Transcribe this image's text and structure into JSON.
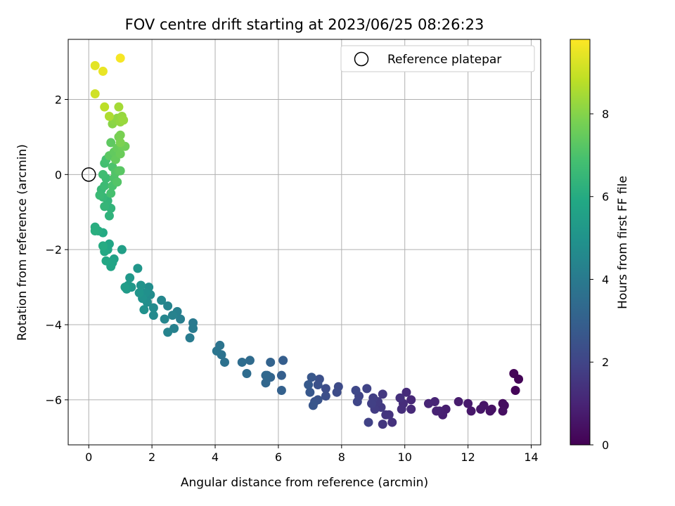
{
  "chart_data": {
    "type": "scatter",
    "title": "FOV centre drift starting at 2023/06/25 08:26:23",
    "xlabel": "Angular distance from reference (arcmin)",
    "ylabel": "Rotation from reference (arcmin)",
    "xlim": [
      -0.65,
      14.3
    ],
    "ylim": [
      -7.2,
      3.6
    ],
    "xticks": [
      0,
      2,
      4,
      6,
      8,
      10,
      12,
      14
    ],
    "yticks": [
      -6,
      -4,
      -2,
      0,
      2
    ],
    "grid": true,
    "legend": {
      "entries": [
        "Reference platepar"
      ],
      "placement": "top-right"
    },
    "reference_point": {
      "x": 0,
      "y": 0
    },
    "colorbar": {
      "label": "Hours from first FF file",
      "range": [
        0,
        9.8
      ],
      "ticks": [
        0,
        2,
        4,
        6,
        8
      ],
      "colormap": "viridis"
    },
    "points": [
      {
        "x": 13.45,
        "y": -5.3,
        "h": 0.15
      },
      {
        "x": 13.6,
        "y": -5.45,
        "h": 0.1
      },
      {
        "x": 13.5,
        "y": -5.75,
        "h": 0.12
      },
      {
        "x": 13.1,
        "y": -6.1,
        "h": 0.3
      },
      {
        "x": 13.15,
        "y": -6.15,
        "h": 0.35
      },
      {
        "x": 13.1,
        "y": -6.3,
        "h": 0.4
      },
      {
        "x": 12.75,
        "y": -6.25,
        "h": 0.45
      },
      {
        "x": 12.7,
        "y": -6.3,
        "h": 0.5
      },
      {
        "x": 12.5,
        "y": -6.15,
        "h": 0.55
      },
      {
        "x": 12.4,
        "y": -6.25,
        "h": 0.6
      },
      {
        "x": 12.1,
        "y": -6.3,
        "h": 0.65
      },
      {
        "x": 12.0,
        "y": -6.1,
        "h": 0.7
      },
      {
        "x": 11.7,
        "y": -6.05,
        "h": 0.75
      },
      {
        "x": 11.3,
        "y": -6.25,
        "h": 0.8
      },
      {
        "x": 11.2,
        "y": -6.4,
        "h": 0.85
      },
      {
        "x": 11.1,
        "y": -6.3,
        "h": 0.9
      },
      {
        "x": 11.0,
        "y": -6.3,
        "h": 0.95
      },
      {
        "x": 10.95,
        "y": -6.05,
        "h": 1.0
      },
      {
        "x": 10.75,
        "y": -6.1,
        "h": 1.05
      },
      {
        "x": 10.2,
        "y": -6.0,
        "h": 1.1
      },
      {
        "x": 10.2,
        "y": -6.25,
        "h": 1.15
      },
      {
        "x": 10.05,
        "y": -5.8,
        "h": 1.2
      },
      {
        "x": 9.95,
        "y": -6.1,
        "h": 1.25
      },
      {
        "x": 9.9,
        "y": -6.25,
        "h": 1.3
      },
      {
        "x": 9.85,
        "y": -5.95,
        "h": 1.35
      },
      {
        "x": 9.6,
        "y": -6.6,
        "h": 1.4
      },
      {
        "x": 9.5,
        "y": -6.4,
        "h": 1.45
      },
      {
        "x": 9.4,
        "y": -6.4,
        "h": 1.5
      },
      {
        "x": 9.3,
        "y": -6.65,
        "h": 1.55
      },
      {
        "x": 9.3,
        "y": -5.85,
        "h": 1.6
      },
      {
        "x": 9.25,
        "y": -6.2,
        "h": 1.65
      },
      {
        "x": 9.15,
        "y": -6.05,
        "h": 1.7
      },
      {
        "x": 9.05,
        "y": -6.25,
        "h": 1.75
      },
      {
        "x": 9.0,
        "y": -5.95,
        "h": 1.8
      },
      {
        "x": 8.95,
        "y": -6.1,
        "h": 1.85
      },
      {
        "x": 8.85,
        "y": -6.6,
        "h": 1.9
      },
      {
        "x": 8.8,
        "y": -5.7,
        "h": 1.95
      },
      {
        "x": 8.55,
        "y": -5.9,
        "h": 2.0
      },
      {
        "x": 8.5,
        "y": -6.05,
        "h": 2.05
      },
      {
        "x": 8.45,
        "y": -5.75,
        "h": 2.1
      },
      {
        "x": 7.9,
        "y": -5.65,
        "h": 2.2
      },
      {
        "x": 7.85,
        "y": -5.8,
        "h": 2.25
      },
      {
        "x": 7.5,
        "y": -5.7,
        "h": 2.3
      },
      {
        "x": 7.5,
        "y": -5.9,
        "h": 2.35
      },
      {
        "x": 7.3,
        "y": -5.45,
        "h": 2.4
      },
      {
        "x": 7.25,
        "y": -5.6,
        "h": 2.45
      },
      {
        "x": 7.25,
        "y": -6.0,
        "h": 2.5
      },
      {
        "x": 7.15,
        "y": -6.05,
        "h": 2.55
      },
      {
        "x": 7.1,
        "y": -6.15,
        "h": 2.6
      },
      {
        "x": 7.05,
        "y": -5.4,
        "h": 2.65
      },
      {
        "x": 7.0,
        "y": -5.8,
        "h": 2.7
      },
      {
        "x": 6.95,
        "y": -5.6,
        "h": 2.75
      },
      {
        "x": 6.15,
        "y": -4.95,
        "h": 2.9
      },
      {
        "x": 6.1,
        "y": -5.35,
        "h": 2.95
      },
      {
        "x": 6.1,
        "y": -5.75,
        "h": 3.0
      },
      {
        "x": 5.75,
        "y": -5.0,
        "h": 3.1
      },
      {
        "x": 5.75,
        "y": -5.4,
        "h": 3.15
      },
      {
        "x": 5.65,
        "y": -5.35,
        "h": 3.2
      },
      {
        "x": 5.6,
        "y": -5.55,
        "h": 3.25
      },
      {
        "x": 5.6,
        "y": -5.35,
        "h": 3.3
      },
      {
        "x": 5.1,
        "y": -4.95,
        "h": 3.4
      },
      {
        "x": 5.0,
        "y": -5.3,
        "h": 3.45
      },
      {
        "x": 4.85,
        "y": -5.0,
        "h": 3.5
      },
      {
        "x": 4.3,
        "y": -5.0,
        "h": 3.65
      },
      {
        "x": 4.2,
        "y": -4.8,
        "h": 3.7
      },
      {
        "x": 4.15,
        "y": -4.55,
        "h": 3.75
      },
      {
        "x": 4.05,
        "y": -4.7,
        "h": 3.8
      },
      {
        "x": 3.3,
        "y": -3.95,
        "h": 3.95
      },
      {
        "x": 3.3,
        "y": -4.1,
        "h": 4.0
      },
      {
        "x": 3.2,
        "y": -4.35,
        "h": 4.05
      },
      {
        "x": 2.9,
        "y": -3.85,
        "h": 4.15
      },
      {
        "x": 2.8,
        "y": -3.65,
        "h": 4.2
      },
      {
        "x": 2.7,
        "y": -4.1,
        "h": 4.25
      },
      {
        "x": 2.65,
        "y": -3.75,
        "h": 4.3
      },
      {
        "x": 2.5,
        "y": -4.2,
        "h": 4.35
      },
      {
        "x": 2.5,
        "y": -3.5,
        "h": 4.4
      },
      {
        "x": 2.4,
        "y": -3.85,
        "h": 4.45
      },
      {
        "x": 2.3,
        "y": -3.35,
        "h": 4.5
      },
      {
        "x": 2.05,
        "y": -3.75,
        "h": 4.6
      },
      {
        "x": 2.05,
        "y": -3.55,
        "h": 4.65
      },
      {
        "x": 1.95,
        "y": -3.2,
        "h": 4.7
      },
      {
        "x": 1.9,
        "y": -3.0,
        "h": 4.75
      },
      {
        "x": 1.85,
        "y": -3.4,
        "h": 4.8
      },
      {
        "x": 1.8,
        "y": -3.15,
        "h": 4.85
      },
      {
        "x": 1.75,
        "y": -3.6,
        "h": 4.9
      },
      {
        "x": 1.7,
        "y": -3.3,
        "h": 4.95
      },
      {
        "x": 1.65,
        "y": -2.95,
        "h": 5.0
      },
      {
        "x": 1.6,
        "y": -3.15,
        "h": 5.05
      },
      {
        "x": 1.55,
        "y": -2.5,
        "h": 5.1
      },
      {
        "x": 1.35,
        "y": -3.0,
        "h": 5.15
      },
      {
        "x": 1.3,
        "y": -2.75,
        "h": 5.2
      },
      {
        "x": 1.25,
        "y": -2.95,
        "h": 5.25
      },
      {
        "x": 1.2,
        "y": -3.05,
        "h": 5.3
      },
      {
        "x": 1.15,
        "y": -3.0,
        "h": 5.35
      },
      {
        "x": 1.05,
        "y": -2.0,
        "h": 5.5
      },
      {
        "x": 0.8,
        "y": -2.25,
        "h": 5.6
      },
      {
        "x": 0.75,
        "y": -2.35,
        "h": 5.65
      },
      {
        "x": 0.7,
        "y": -2.45,
        "h": 5.7
      },
      {
        "x": 0.65,
        "y": -1.85,
        "h": 5.75
      },
      {
        "x": 0.6,
        "y": -2.0,
        "h": 5.8
      },
      {
        "x": 0.55,
        "y": -2.3,
        "h": 5.85
      },
      {
        "x": 0.5,
        "y": -2.05,
        "h": 5.9
      },
      {
        "x": 0.45,
        "y": -1.55,
        "h": 5.95
      },
      {
        "x": 0.45,
        "y": -1.9,
        "h": 6.0
      },
      {
        "x": 0.3,
        "y": -1.5,
        "h": 6.05
      },
      {
        "x": 0.2,
        "y": -1.4,
        "h": 6.1
      },
      {
        "x": 0.2,
        "y": -1.5,
        "h": 6.12
      },
      {
        "x": 0.65,
        "y": -1.1,
        "h": 6.3
      },
      {
        "x": 0.7,
        "y": -0.9,
        "h": 6.35
      },
      {
        "x": 0.6,
        "y": -0.7,
        "h": 6.4
      },
      {
        "x": 0.5,
        "y": -0.85,
        "h": 6.45
      },
      {
        "x": 0.45,
        "y": -0.6,
        "h": 6.5
      },
      {
        "x": 0.4,
        "y": -0.4,
        "h": 6.55
      },
      {
        "x": 0.35,
        "y": -0.55,
        "h": 6.6
      },
      {
        "x": 0.5,
        "y": -0.3,
        "h": 6.65
      },
      {
        "x": 0.55,
        "y": -0.1,
        "h": 6.7
      },
      {
        "x": 0.45,
        "y": 0.0,
        "h": 6.75
      },
      {
        "x": 0.5,
        "y": 0.3,
        "h": 6.8
      },
      {
        "x": 0.55,
        "y": 0.4,
        "h": 6.85
      },
      {
        "x": 0.7,
        "y": -0.5,
        "h": 6.9
      },
      {
        "x": 0.75,
        "y": -0.3,
        "h": 6.95
      },
      {
        "x": 0.75,
        "y": 0.2,
        "h": 7.0
      },
      {
        "x": 0.8,
        "y": -0.1,
        "h": 7.05
      },
      {
        "x": 0.85,
        "y": 0.05,
        "h": 7.1
      },
      {
        "x": 0.9,
        "y": -0.2,
        "h": 7.15
      },
      {
        "x": 0.95,
        "y": 0.1,
        "h": 7.2
      },
      {
        "x": 1.0,
        "y": 0.1,
        "h": 7.25
      },
      {
        "x": 0.65,
        "y": 0.5,
        "h": 7.3
      },
      {
        "x": 0.7,
        "y": 0.85,
        "h": 7.35
      },
      {
        "x": 0.8,
        "y": 0.6,
        "h": 7.4
      },
      {
        "x": 0.85,
        "y": 0.4,
        "h": 7.45
      },
      {
        "x": 0.9,
        "y": 0.7,
        "h": 7.5
      },
      {
        "x": 1.0,
        "y": 0.55,
        "h": 7.55
      },
      {
        "x": 1.05,
        "y": 0.75,
        "h": 7.6
      },
      {
        "x": 1.15,
        "y": 0.75,
        "h": 7.65
      },
      {
        "x": 0.95,
        "y": 1.0,
        "h": 7.75
      },
      {
        "x": 1.0,
        "y": 1.05,
        "h": 7.8
      },
      {
        "x": 1.0,
        "y": 0.85,
        "h": 7.85
      },
      {
        "x": 0.75,
        "y": 1.35,
        "h": 8.05
      },
      {
        "x": 0.8,
        "y": 1.45,
        "h": 8.1
      },
      {
        "x": 0.9,
        "y": 1.5,
        "h": 8.15
      },
      {
        "x": 1.0,
        "y": 1.4,
        "h": 8.2
      },
      {
        "x": 1.05,
        "y": 1.55,
        "h": 8.25
      },
      {
        "x": 1.1,
        "y": 1.45,
        "h": 8.3
      },
      {
        "x": 0.95,
        "y": 1.8,
        "h": 8.45
      },
      {
        "x": 0.65,
        "y": 1.55,
        "h": 8.6
      },
      {
        "x": 0.5,
        "y": 1.8,
        "h": 8.8
      },
      {
        "x": 0.2,
        "y": 2.15,
        "h": 9.1
      },
      {
        "x": 0.2,
        "y": 2.9,
        "h": 9.4
      },
      {
        "x": 0.45,
        "y": 2.75,
        "h": 9.5
      },
      {
        "x": 1.0,
        "y": 3.1,
        "h": 9.7
      }
    ]
  }
}
